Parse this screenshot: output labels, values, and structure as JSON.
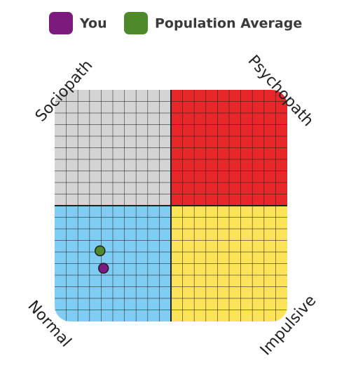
{
  "chart_data": {
    "type": "scatter",
    "series": [
      {
        "name": "You",
        "color": "#7d1a7d",
        "x": [
          -5.8
        ],
        "values": [
          -5.4
        ]
      },
      {
        "name": "Population Average",
        "color": "#4e8a2c",
        "x": [
          -6.1
        ],
        "values": [
          -3.9
        ]
      }
    ],
    "quadrants": [
      {
        "label": "Sociopath",
        "color": "#d4d4d4"
      },
      {
        "label": "Psychopath",
        "color": "#e8272b"
      },
      {
        "label": "Normal",
        "color": "#80cdf3"
      },
      {
        "label": "Impulsive",
        "color": "#fde35a"
      }
    ],
    "xlim": [
      -10,
      10
    ],
    "ylim": [
      -10,
      10
    ],
    "grid": true
  }
}
